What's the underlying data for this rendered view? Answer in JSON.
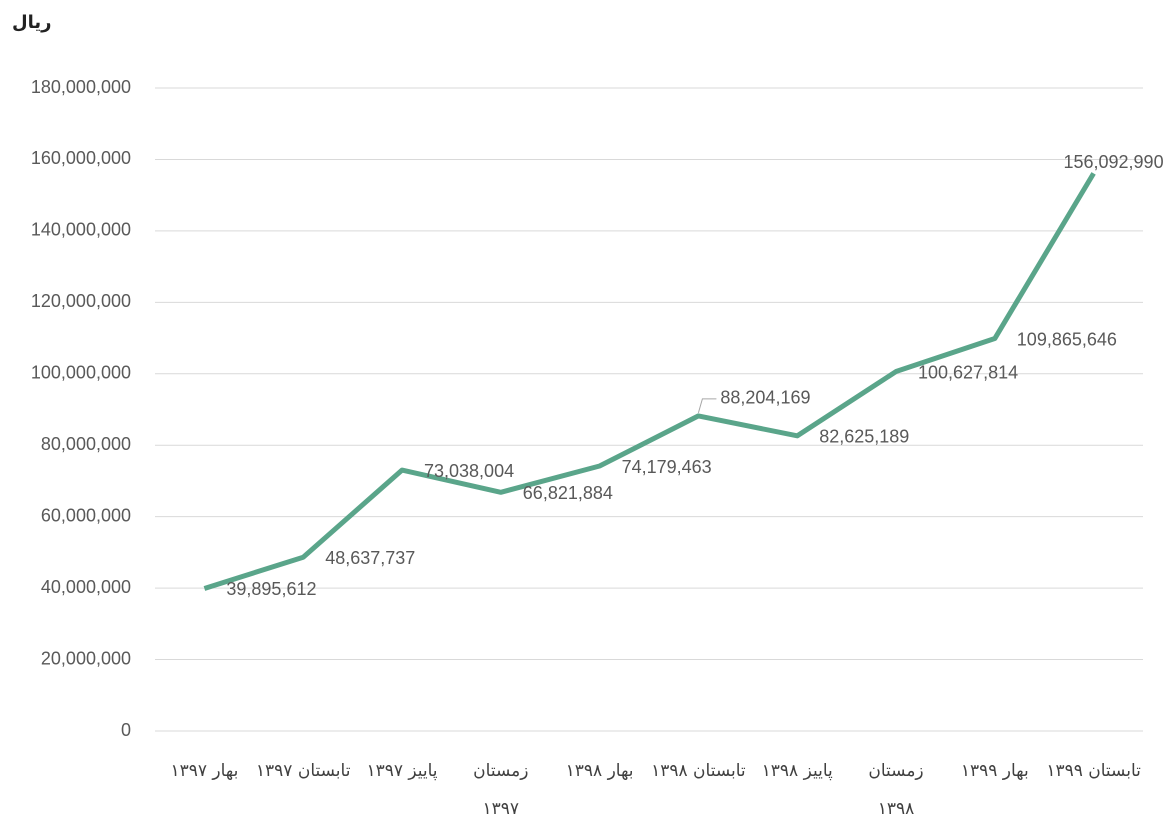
{
  "chart_data": {
    "type": "line",
    "y_axis_label": "ریال",
    "categories": [
      "بهار ۱۳۹۷",
      "تابستان ۱۳۹۷",
      "پاییز ۱۳۹۷",
      "زمستان ۱۳۹۷",
      "بهار ۱۳۹۸",
      "تابستان ۱۳۹۸",
      "پاییز ۱۳۹۸",
      "زمستان ۱۳۹۸",
      "بهار ۱۳۹۹",
      "تابستان ۱۳۹۹"
    ],
    "series": [
      {
        "name": "ریال",
        "color": "#5aa58a",
        "values": [
          39895612,
          48637737,
          73038004,
          66821884,
          74179463,
          88204169,
          82625189,
          100627814,
          109865646,
          156092990
        ],
        "value_labels": [
          "39,895,612",
          "48,637,737",
          "73,038,004",
          "66,821,884",
          "74,179,463",
          "88,204,169",
          "82,625,189",
          "100,627,814",
          "109,865,646",
          "156,092,990"
        ]
      }
    ],
    "ylim": [
      0,
      180000000
    ],
    "yticks": [
      0,
      {
        "value": 20000000,
        "label": "20,000,000"
      },
      {
        "value": 40000000,
        "label": "40,000,000"
      },
      {
        "value": 60000000,
        "label": "60,000,000"
      },
      {
        "value": 80000000,
        "label": "80,000,000"
      },
      {
        "value": 100000000,
        "label": "100,000,000"
      },
      {
        "value": 120000000,
        "label": "120,000,000"
      },
      {
        "value": 140000000,
        "label": "140,000,000"
      },
      {
        "value": 160000000,
        "label": "160,000,000"
      },
      {
        "value": 180000000,
        "label": "180,000,000"
      }
    ],
    "grid": true
  }
}
